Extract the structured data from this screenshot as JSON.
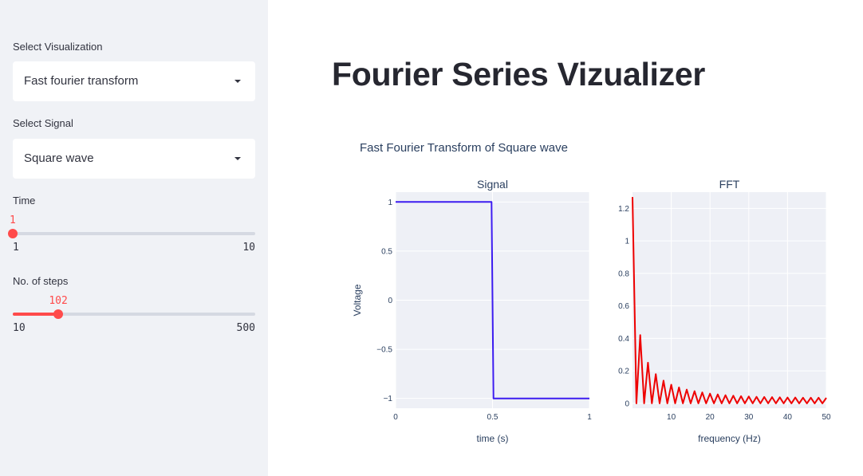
{
  "sidebar": {
    "visualization": {
      "label": "Select Visualization",
      "value": "Fast fourier transform"
    },
    "signal": {
      "label": "Select Signal",
      "value": "Square wave"
    },
    "time": {
      "label": "Time",
      "value": "1",
      "min": "1",
      "max": "10",
      "fraction": 0.0
    },
    "steps": {
      "label": "No. of steps",
      "value": "102",
      "min": "10",
      "max": "500",
      "fraction": 0.1878
    }
  },
  "main": {
    "title": "Fourier Series Vizualizer",
    "figure_title": "Fast Fourier Transform of Square wave"
  },
  "colors": {
    "accent": "#ff4b4b",
    "signal_line": "#3c1cf0",
    "fft_line": "#ee0000",
    "plot_bg": "#eef0f6"
  },
  "chart_data": [
    {
      "type": "line",
      "title": "Signal",
      "xlabel": "time (s)",
      "ylabel": "Voltage",
      "xlim": [
        0,
        1
      ],
      "ylim": [
        -1.1,
        1.1
      ],
      "xticks": [
        "0",
        "0.5",
        "1"
      ],
      "yticks": [
        "−1",
        "−0.5",
        "0",
        "0.5",
        "1"
      ],
      "series": [
        {
          "x": [
            0,
            0.495,
            0.505,
            1
          ],
          "values": [
            1,
            1,
            -1,
            -1
          ]
        }
      ]
    },
    {
      "type": "line",
      "title": "FFT",
      "xlabel": "frequency (Hz)",
      "ylabel": "",
      "xlim": [
        0,
        50
      ],
      "ylim": [
        -0.03,
        1.3
      ],
      "xticks": [
        "10",
        "20",
        "30",
        "40",
        "50"
      ],
      "yticks": [
        "0",
        "0.2",
        "0.4",
        "0.6",
        "0.8",
        "1",
        "1.2"
      ],
      "series": [
        {
          "x": [
            0,
            1,
            2,
            3,
            4,
            5,
            6,
            7,
            8,
            9,
            10,
            11,
            12,
            13,
            14,
            15,
            16,
            17,
            18,
            19,
            20,
            21,
            22,
            23,
            24,
            25,
            26,
            27,
            28,
            29,
            30,
            31,
            32,
            33,
            34,
            35,
            36,
            37,
            38,
            39,
            40,
            41,
            42,
            43,
            44,
            45,
            46,
            47,
            48,
            49,
            50
          ],
          "values": [
            1.27,
            0,
            0.42,
            0,
            0.25,
            0,
            0.18,
            0,
            0.14,
            0,
            0.115,
            0,
            0.098,
            0,
            0.085,
            0,
            0.075,
            0,
            0.067,
            0,
            0.06,
            0,
            0.055,
            0,
            0.05,
            0,
            0.047,
            0,
            0.044,
            0,
            0.042,
            0,
            0.04,
            0,
            0.039,
            0,
            0.038,
            0,
            0.037,
            0,
            0.036,
            0,
            0.036,
            0,
            0.035,
            0,
            0.035,
            0,
            0.035,
            0,
            0.034
          ]
        }
      ]
    }
  ]
}
